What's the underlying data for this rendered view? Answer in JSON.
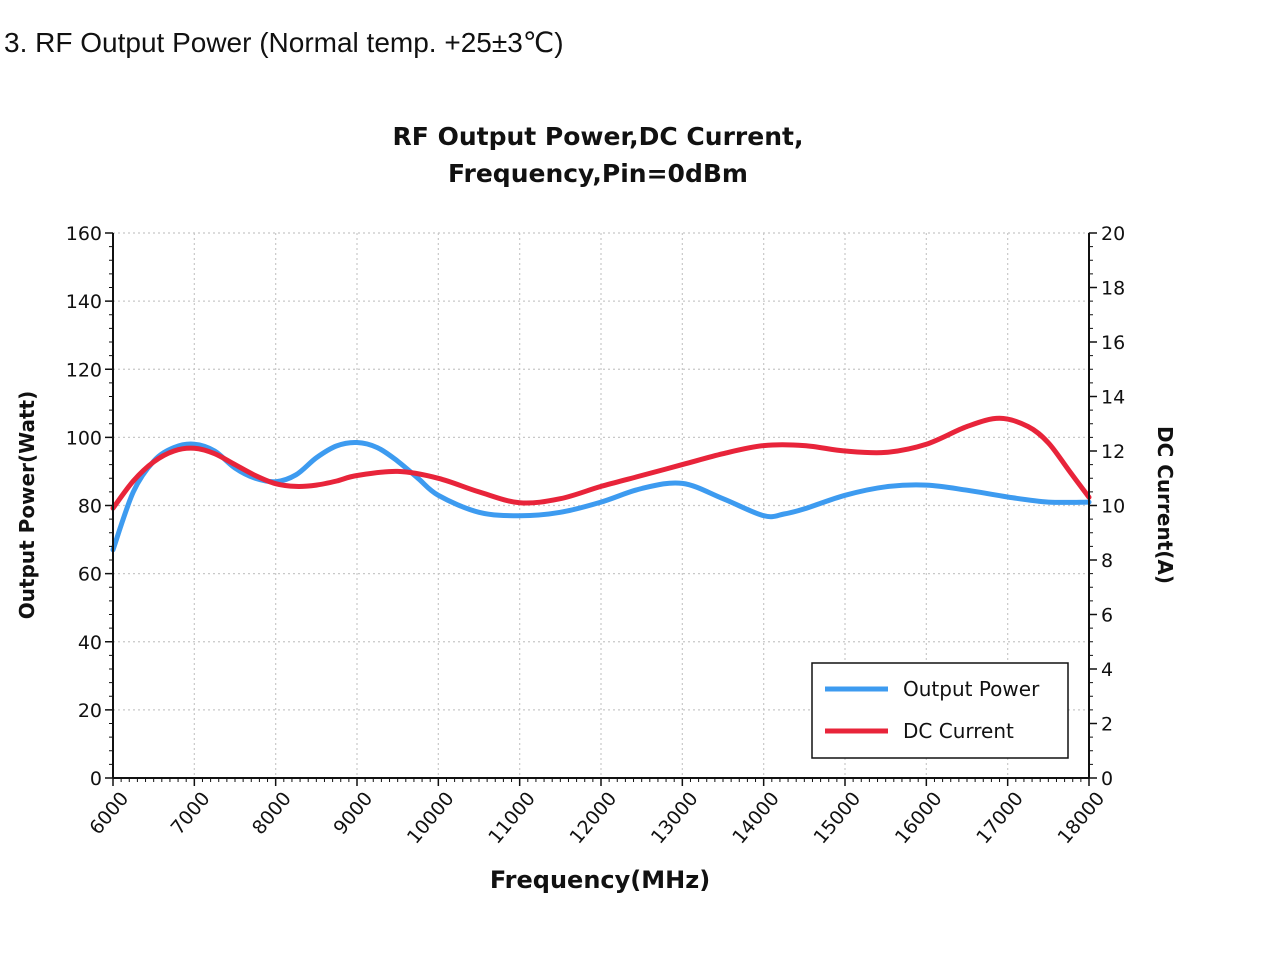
{
  "heading": "3. RF Output Power (Normal temp. +25±3℃)",
  "chart_data": {
    "type": "line",
    "title": [
      "RF Output Power,DC Current,",
      "Frequency,Pin=0dBm"
    ],
    "xlabel": "Frequency(MHz)",
    "ylabel": "Output Power(Watt)",
    "y2label": "DC Current(A)",
    "xlim": [
      6000,
      18000
    ],
    "ylim": [
      0,
      160
    ],
    "y2lim": [
      0,
      20
    ],
    "x_ticks": [
      6000,
      7000,
      8000,
      9000,
      10000,
      11000,
      12000,
      13000,
      14000,
      15000,
      16000,
      17000,
      18000
    ],
    "y_ticks": [
      0,
      20,
      40,
      60,
      80,
      100,
      120,
      140,
      160
    ],
    "y2_ticks": [
      0,
      2,
      4,
      6,
      8,
      10,
      12,
      14,
      16,
      18,
      20
    ],
    "grid": true,
    "legend_position": "bottom-right",
    "series": [
      {
        "name": "Output Power",
        "axis": "left",
        "color": "#3d9bf0",
        "x": [
          6000,
          6250,
          6500,
          6750,
          7000,
          7250,
          7500,
          7750,
          8000,
          8250,
          8500,
          8750,
          9000,
          9250,
          9500,
          9750,
          10000,
          10500,
          11000,
          11500,
          12000,
          12500,
          13000,
          13500,
          14000,
          14250,
          14500,
          15000,
          15500,
          16000,
          16500,
          17000,
          17500,
          18000
        ],
        "y": [
          67,
          84,
          93,
          97,
          98,
          96,
          91,
          88,
          87,
          89,
          94,
          97.5,
          98.5,
          97,
          93,
          88,
          83,
          78,
          77,
          78,
          81,
          85,
          86.5,
          82,
          77,
          77.5,
          79,
          83,
          85.5,
          86,
          84.5,
          82.5,
          81,
          81
        ]
      },
      {
        "name": "DC Current",
        "axis": "right",
        "color": "#e8243a",
        "x": [
          6000,
          6250,
          6500,
          6750,
          7000,
          7250,
          7500,
          7750,
          8000,
          8250,
          8500,
          8750,
          9000,
          9500,
          10000,
          10500,
          11000,
          11500,
          12000,
          12500,
          13000,
          13500,
          14000,
          14500,
          15000,
          15500,
          16000,
          16500,
          16900,
          17250,
          17500,
          17750,
          18000
        ],
        "y": [
          9.9,
          10.9,
          11.6,
          12.0,
          12.1,
          11.9,
          11.5,
          11.1,
          10.8,
          10.7,
          10.75,
          10.9,
          11.1,
          11.25,
          11.0,
          10.5,
          10.1,
          10.25,
          10.7,
          11.1,
          11.5,
          11.9,
          12.2,
          12.2,
          12.0,
          11.95,
          12.25,
          12.9,
          13.2,
          12.9,
          12.3,
          11.3,
          10.3
        ]
      }
    ]
  }
}
